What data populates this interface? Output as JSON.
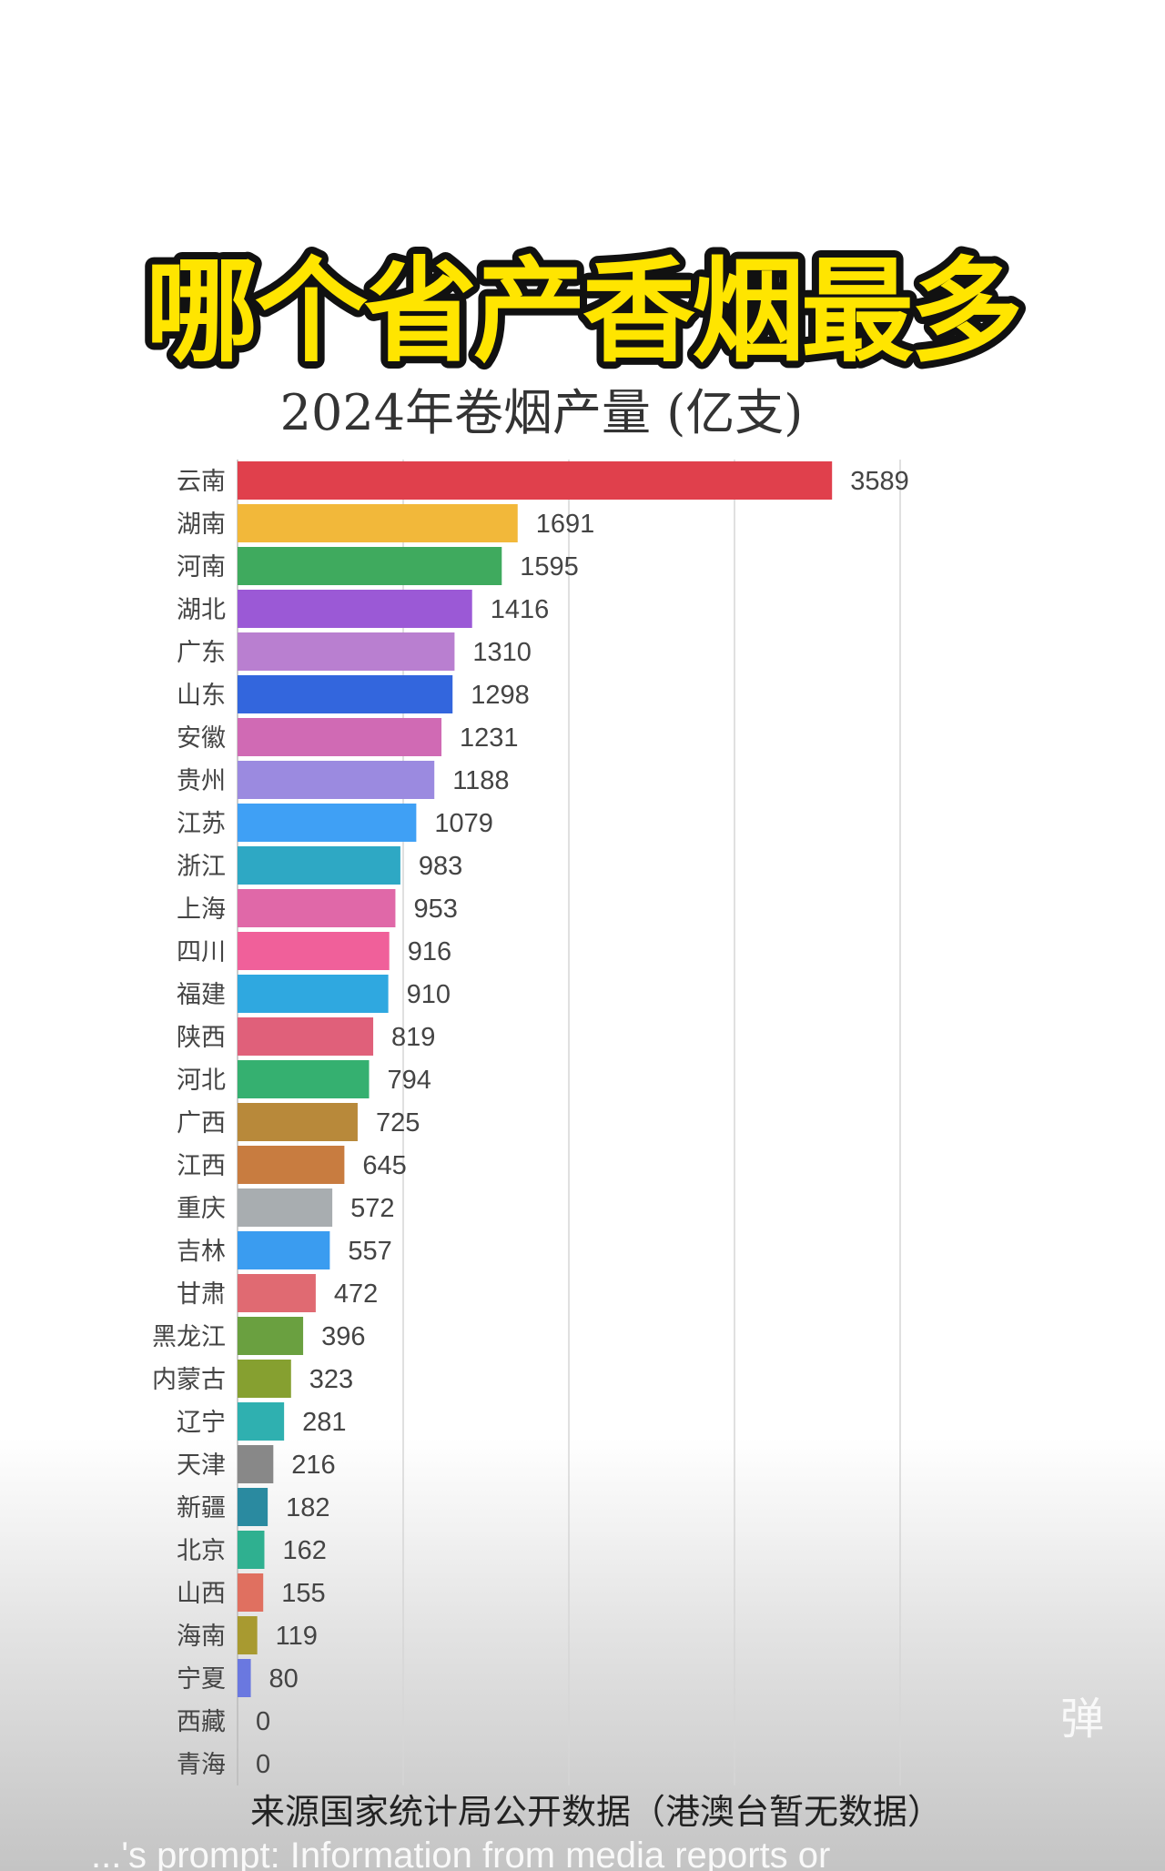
{
  "headline": "哪个省产香烟最多",
  "watermark": "弹",
  "source_note": "来源国家统计局公开数据（港澳台暂无数据）",
  "overlay_caption": "...'s prompt: Information from media reports or",
  "chart_data": {
    "type": "bar",
    "orientation": "horizontal",
    "title": "2024年卷烟产量 (亿支)",
    "xlim": [
      0,
      4000
    ],
    "grid": true,
    "grid_step": 1000,
    "categories": [
      "云南",
      "湖南",
      "河南",
      "湖北",
      "广东",
      "山东",
      "安徽",
      "贵州",
      "江苏",
      "浙江",
      "上海",
      "四川",
      "福建",
      "陕西",
      "河北",
      "广西",
      "江西",
      "重庆",
      "吉林",
      "甘肃",
      "黑龙江",
      "内蒙古",
      "辽宁",
      "天津",
      "新疆",
      "北京",
      "山西",
      "海南",
      "宁夏",
      "西藏",
      "青海"
    ],
    "values": [
      3589,
      1691,
      1595,
      1416,
      1310,
      1298,
      1231,
      1188,
      1079,
      983,
      953,
      916,
      910,
      819,
      794,
      725,
      645,
      572,
      557,
      472,
      396,
      323,
      281,
      216,
      182,
      162,
      155,
      119,
      80,
      0,
      0
    ],
    "colors": [
      "#e0404c",
      "#f2b83a",
      "#3faa5e",
      "#9b59d6",
      "#b97fd0",
      "#3366dd",
      "#d06ab4",
      "#9b8ae0",
      "#3fa0f5",
      "#2ea8c4",
      "#e068a8",
      "#f0609a",
      "#2fa8e0",
      "#e0607a",
      "#35b070",
      "#b8893a",
      "#c87c40",
      "#a8adb0",
      "#3a9cf0",
      "#e06a72",
      "#6aa040",
      "#86a030",
      "#2fb0b0",
      "#888888",
      "#2a8aa0",
      "#2fb090",
      "#e07060",
      "#a89a30",
      "#6a78e0",
      "#999999",
      "#999999"
    ]
  }
}
